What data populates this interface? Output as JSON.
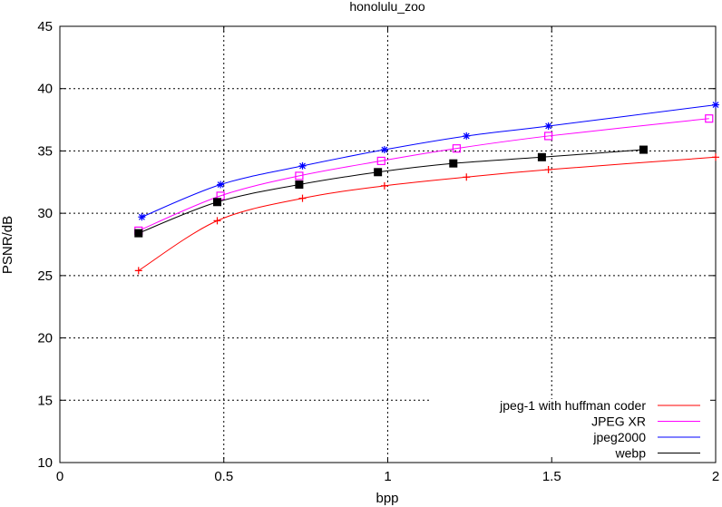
{
  "chart_data": {
    "type": "line",
    "title": "honolulu_zoo",
    "xlabel": "bpp",
    "ylabel": "PSNR/dB",
    "xlim": [
      0,
      2
    ],
    "ylim": [
      10,
      45
    ],
    "xticks": [
      0,
      0.5,
      1,
      1.5,
      2
    ],
    "xtick_labels": [
      "0",
      "0.5",
      "1",
      "1.5",
      "2"
    ],
    "yticks": [
      10,
      15,
      20,
      25,
      30,
      35,
      40,
      45
    ],
    "ytick_labels": [
      "10",
      "15",
      "20",
      "25",
      "30",
      "35",
      "40",
      "45"
    ],
    "grid": true,
    "legend_position": "bottom-right",
    "series": [
      {
        "name": "jpeg-1 with huffman coder",
        "color": "#ff0000",
        "marker": "plus",
        "x": [
          0.24,
          0.48,
          0.74,
          0.99,
          1.24,
          1.49,
          2.0
        ],
        "y": [
          25.4,
          29.4,
          31.2,
          32.2,
          32.9,
          33.5,
          34.5
        ]
      },
      {
        "name": "JPEG XR",
        "color": "#ff00ff",
        "marker": "open-square",
        "x": [
          0.24,
          0.49,
          0.73,
          0.98,
          1.21,
          1.49,
          1.98
        ],
        "y": [
          28.6,
          31.4,
          33.0,
          34.2,
          35.2,
          36.2,
          37.6
        ]
      },
      {
        "name": "jpeg2000",
        "color": "#0000ff",
        "marker": "star",
        "x": [
          0.25,
          0.49,
          0.74,
          0.99,
          1.24,
          1.49,
          2.0
        ],
        "y": [
          29.7,
          32.3,
          33.8,
          35.1,
          36.2,
          37.0,
          38.7
        ]
      },
      {
        "name": "webp",
        "color": "#000000",
        "marker": "filled-square",
        "x": [
          0.24,
          0.48,
          0.73,
          0.97,
          1.2,
          1.47,
          1.78
        ],
        "y": [
          28.4,
          30.9,
          32.3,
          33.3,
          34.0,
          34.5,
          35.1
        ]
      }
    ]
  }
}
